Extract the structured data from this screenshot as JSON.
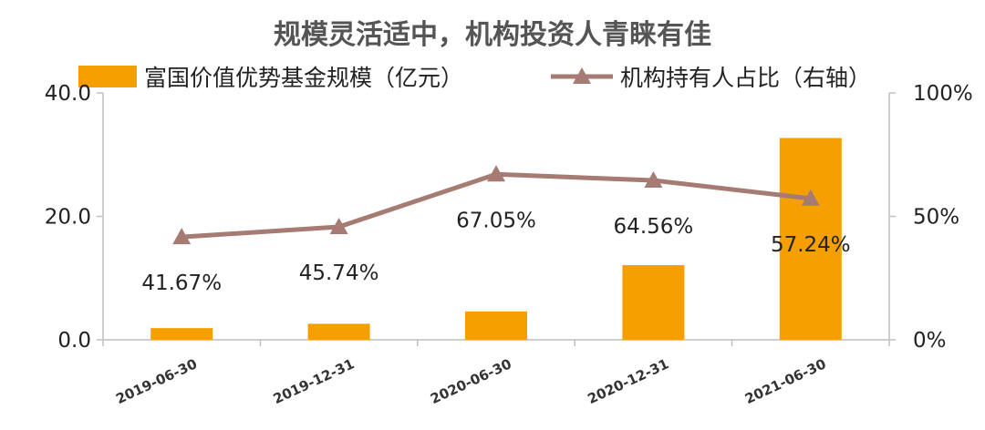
{
  "chart_data": {
    "type": "bar",
    "title": "规模灵活适中，机构投资人青睐有佳",
    "categories": [
      "2019-06-30",
      "2019-12-31",
      "2020-06-30",
      "2020-12-31",
      "2021-06-30"
    ],
    "series": [
      {
        "name": "富国价值优势基金规模（亿元）",
        "type": "bar",
        "axis": "left",
        "values": [
          1.9,
          2.6,
          4.6,
          12.1,
          32.7
        ],
        "color": "#F5A000"
      },
      {
        "name": "机构持有人占比（右轴）",
        "type": "line",
        "axis": "right",
        "marker": "triangle",
        "values": [
          41.67,
          45.74,
          67.05,
          64.56,
          57.24
        ],
        "data_labels": [
          "41.67%",
          "45.74%",
          "67.05%",
          "64.56%",
          "57.24%"
        ],
        "color": "#A67B73"
      }
    ],
    "y_left": {
      "ylim": [
        0,
        40
      ],
      "ticks": [
        "0.0",
        "20.0",
        "40.0"
      ],
      "tick_values": [
        0,
        20,
        40
      ]
    },
    "y_right": {
      "ylim": [
        0,
        100
      ],
      "ticks": [
        "0%",
        "50%",
        "100%"
      ],
      "tick_values": [
        0,
        50,
        100
      ]
    },
    "grid": false,
    "legend_position": "top"
  }
}
